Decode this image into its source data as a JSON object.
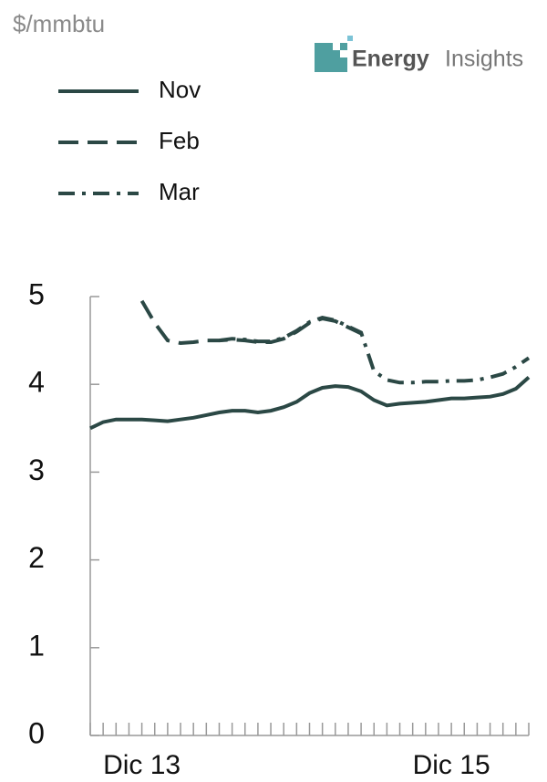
{
  "chart_data": {
    "type": "line",
    "title": "$/mmbtu",
    "brand": {
      "name": "Energy",
      "suffix": "Insights"
    },
    "categories": [
      null,
      null,
      null,
      null,
      "Dic 13",
      null,
      null,
      null,
      null,
      null,
      null,
      null,
      null,
      null,
      null,
      null,
      null,
      null,
      null,
      null,
      null,
      null,
      null,
      null,
      null,
      null,
      null,
      null,
      "Dic 15",
      null,
      null,
      null,
      null,
      null,
      null
    ],
    "series": [
      {
        "name": "Nov",
        "color": "#2b4845",
        "dash": "solid",
        "values": [
          3.5,
          3.57,
          3.6,
          3.6,
          3.6,
          3.59,
          3.58,
          3.6,
          3.62,
          3.65,
          3.68,
          3.7,
          3.7,
          3.68,
          3.7,
          3.74,
          3.8,
          3.9,
          3.96,
          3.98,
          3.97,
          3.92,
          3.82,
          3.76,
          3.78,
          3.79,
          3.8,
          3.82,
          3.84,
          3.84,
          3.85,
          3.86,
          3.89,
          3.95,
          4.08
        ]
      },
      {
        "name": "Feb",
        "color": "#2b4845",
        "dash": "dashed",
        "values": [
          null,
          null,
          null,
          null,
          4.95,
          4.7,
          4.5,
          4.47,
          4.48,
          4.5,
          4.5,
          4.51,
          4.5,
          4.48,
          4.48,
          4.52,
          4.6,
          4.7,
          4.75,
          4.72,
          4.65,
          4.58,
          null,
          null,
          null,
          null,
          null,
          null,
          null,
          null,
          null,
          null,
          null,
          null,
          null
        ]
      },
      {
        "name": "Mar",
        "color": "#2b4845",
        "dash": "dashdot",
        "values": [
          null,
          null,
          null,
          null,
          null,
          null,
          null,
          null,
          null,
          null,
          4.5,
          4.52,
          4.51,
          4.49,
          4.49,
          4.53,
          4.61,
          4.71,
          4.76,
          4.73,
          4.66,
          4.59,
          4.15,
          4.05,
          4.02,
          4.02,
          4.03,
          4.03,
          4.04,
          4.04,
          4.05,
          4.08,
          4.12,
          4.2,
          4.3
        ]
      }
    ],
    "ylim": [
      0,
      5
    ],
    "yticks": [
      0,
      1,
      2,
      3,
      4,
      5
    ],
    "legend": "top-left",
    "grid": false
  }
}
